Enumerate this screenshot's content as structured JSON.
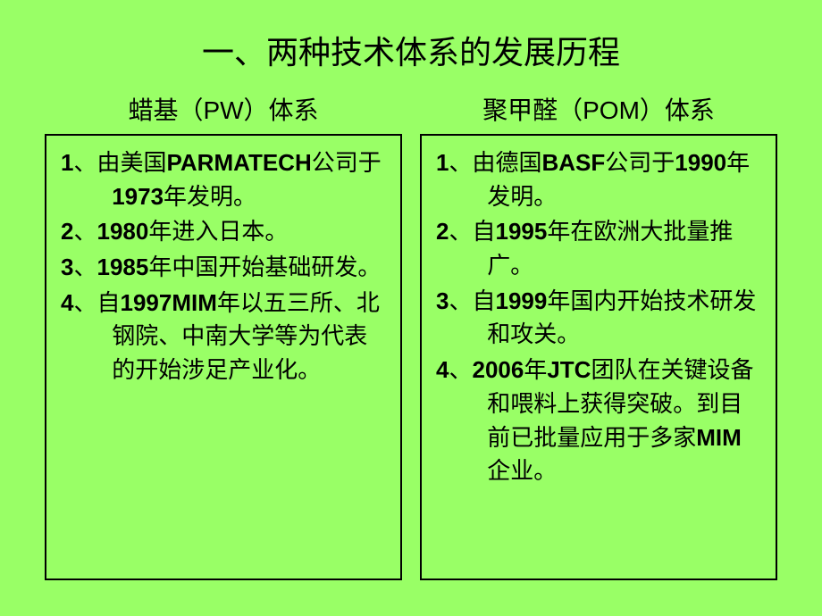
{
  "title": "一、两种技术体系的发展历程",
  "colors": {
    "background": "#99ff66",
    "text": "#000000",
    "border": "#000000"
  },
  "typography": {
    "title_fontsize": 36,
    "header_fontsize": 28,
    "body_fontsize": 26,
    "line_height": 1.45
  },
  "left": {
    "header": "蜡基（PW）体系",
    "items": [
      {
        "num": "1",
        "sep": "、",
        "pre": "由美国",
        "bold": "PARMATECH",
        "mid": "公司于",
        "bold2": "1973",
        "post": "年发明。"
      },
      {
        "num": "2",
        "sep": "、",
        "bold": "1980",
        "post": "年进入日本。"
      },
      {
        "num": "3",
        "sep": "、",
        "bold": "1985",
        "post": "年中国开始基础研发。"
      },
      {
        "num": "4",
        "sep": "、",
        "pre": "自",
        "bold": "1997",
        "post": "年以五三所、北钢院、中南大学等为代表的开始涉足",
        "bold2": "MIM",
        "post2": "产业化。"
      }
    ]
  },
  "right": {
    "header": "聚甲醛（POM）体系",
    "items": [
      {
        "num": "1",
        "sep": "、",
        "pre": "由德国",
        "bold": "BASF",
        "mid": "公司于",
        "bold2": "1990",
        "post": "年发明。"
      },
      {
        "num": "2",
        "sep": "、",
        "pre": "自",
        "bold": "1995",
        "post": "年在欧洲大批量推广。"
      },
      {
        "num": "3",
        "sep": "、",
        "pre": "自",
        "bold": "1999",
        "post": "年国内开始技术研发和攻关。"
      },
      {
        "num": "4",
        "sep": "、",
        "bold": "2006",
        "mid": "年",
        "bold2": "JTC",
        "post": "团队在关键设备和喂料上获得突破。到目前已批量应用于多家",
        "bold3": "MIM",
        "post2": "企业。"
      }
    ]
  }
}
